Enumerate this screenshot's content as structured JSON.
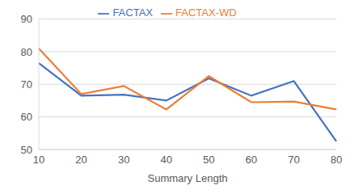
{
  "chart_data": {
    "type": "line",
    "x_label": "Summary Length",
    "categories": [
      "10",
      "20",
      "30",
      "40",
      "50",
      "60",
      "70",
      "80"
    ],
    "series": [
      {
        "name": "FACTAX",
        "color": "#4472c4",
        "values": [
          76.5,
          66.5,
          66.8,
          65.0,
          71.8,
          66.5,
          71.0,
          52.5
        ]
      },
      {
        "name": "FACTAX-WD",
        "color": "#ed7d31",
        "values": [
          81.0,
          67.0,
          69.5,
          62.3,
          72.5,
          64.5,
          64.7,
          62.3
        ]
      }
    ],
    "ylim": [
      50,
      90
    ],
    "yticks": [
      50,
      60,
      70,
      80,
      90
    ],
    "grid": true,
    "legend": "top"
  }
}
